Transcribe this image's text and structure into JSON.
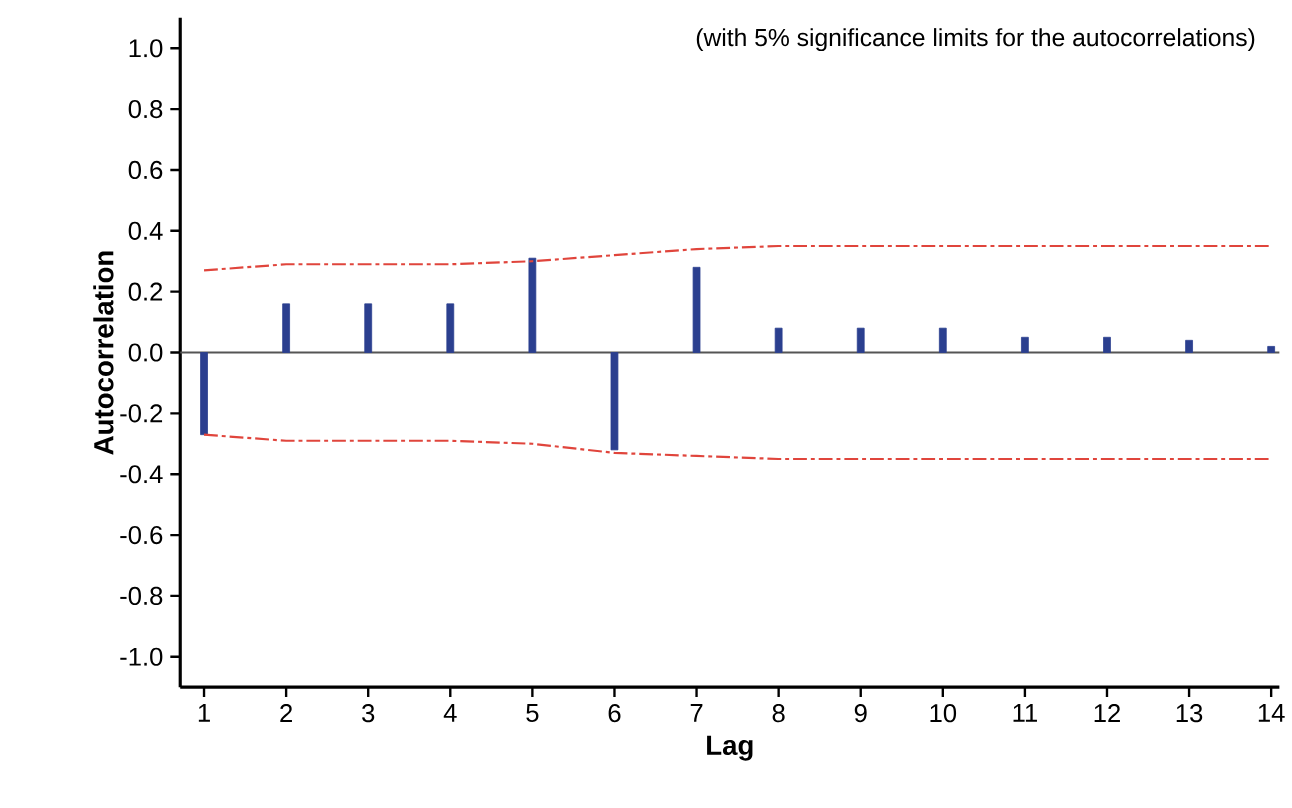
{
  "chart_data": {
    "type": "bar",
    "xlabel": "Lag",
    "ylabel": "Autocorrelation",
    "categories": [
      "1",
      "2",
      "3",
      "4",
      "5",
      "6",
      "7",
      "8",
      "9",
      "10",
      "11",
      "12",
      "13",
      "14"
    ],
    "series": [
      {
        "color": "#2b3f8f",
        "values": [
          -0.27,
          0.16,
          0.16,
          0.16,
          0.31,
          -0.32,
          0.28,
          0.08,
          0.08,
          0.08,
          0.05,
          0.05,
          0.04,
          0.02
        ]
      },
      {
        "type": "line",
        "color": "#e0453c",
        "line_style": "dashdot",
        "values": [
          0.27,
          0.29,
          0.29,
          0.29,
          0.3,
          0.32,
          0.34,
          0.35,
          0.35,
          0.35,
          0.35,
          0.35,
          0.35,
          0.35
        ]
      },
      {
        "type": "line",
        "color": "#e0453c",
        "line_style": "dashdot",
        "values": [
          -0.27,
          -0.29,
          -0.29,
          -0.29,
          -0.3,
          -0.33,
          -0.34,
          -0.35,
          -0.35,
          -0.35,
          -0.35,
          -0.35,
          -0.35,
          -0.35
        ]
      }
    ],
    "ylim": [
      -1.1,
      1.1
    ],
    "yticks": [
      {
        "value": -1.0,
        "label": "-1.0"
      },
      {
        "value": -0.8,
        "label": "-0.8"
      },
      {
        "value": -0.6,
        "label": "-0.6"
      },
      {
        "value": -0.4,
        "label": "-0.4"
      },
      {
        "value": -0.2,
        "label": "-0.2"
      },
      {
        "value": 0.0,
        "label": "0.0"
      },
      {
        "value": 0.2,
        "label": "0.2"
      },
      {
        "value": 0.4,
        "label": "0.4"
      },
      {
        "value": 0.6,
        "label": "0.6"
      },
      {
        "value": 0.8,
        "label": "0.8"
      },
      {
        "value": 1.0,
        "label": "1.0"
      }
    ],
    "ref_lines": [
      {
        "axis": "y",
        "value": 0,
        "color": "#555555"
      }
    ],
    "grid": false,
    "legend": false,
    "annotations": [
      "(with 5% significance limits for the autocorrelations)"
    ]
  }
}
